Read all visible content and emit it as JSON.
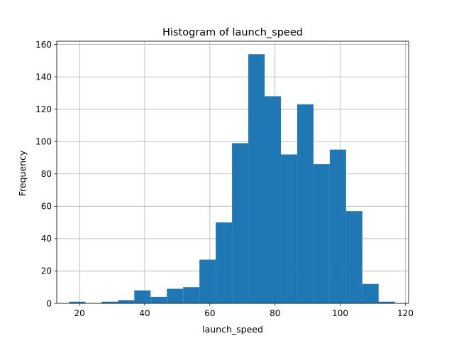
{
  "chart_data": {
    "type": "bar",
    "title": "Histogram of launch_speed",
    "xlabel": "launch_speed",
    "ylabel": "Frequency",
    "xlim": [
      13.0,
      121.0
    ],
    "ylim": [
      0,
      162
    ],
    "xticks": [
      20,
      40,
      60,
      80,
      100,
      120
    ],
    "yticks": [
      0,
      20,
      40,
      60,
      80,
      100,
      120,
      140,
      160
    ],
    "grid": true,
    "bar_color": "#1f77b4",
    "bins": [
      {
        "x0": 16.8,
        "x1": 21.8,
        "count": 1
      },
      {
        "x0": 21.8,
        "x1": 26.8,
        "count": 0
      },
      {
        "x0": 26.8,
        "x1": 31.8,
        "count": 1
      },
      {
        "x0": 31.8,
        "x1": 36.8,
        "count": 2
      },
      {
        "x0": 36.8,
        "x1": 41.8,
        "count": 8
      },
      {
        "x0": 41.8,
        "x1": 46.8,
        "count": 4
      },
      {
        "x0": 46.8,
        "x1": 51.8,
        "count": 9
      },
      {
        "x0": 51.8,
        "x1": 56.8,
        "count": 10
      },
      {
        "x0": 56.8,
        "x1": 61.8,
        "count": 27
      },
      {
        "x0": 61.8,
        "x1": 66.8,
        "count": 50
      },
      {
        "x0": 66.8,
        "x1": 71.8,
        "count": 99
      },
      {
        "x0": 71.8,
        "x1": 76.8,
        "count": 154
      },
      {
        "x0": 76.8,
        "x1": 81.8,
        "count": 128
      },
      {
        "x0": 81.8,
        "x1": 86.8,
        "count": 92
      },
      {
        "x0": 86.8,
        "x1": 91.8,
        "count": 123
      },
      {
        "x0": 91.8,
        "x1": 96.8,
        "count": 86
      },
      {
        "x0": 96.8,
        "x1": 101.8,
        "count": 95
      },
      {
        "x0": 101.8,
        "x1": 106.8,
        "count": 57
      },
      {
        "x0": 106.8,
        "x1": 111.8,
        "count": 12
      },
      {
        "x0": 111.8,
        "x1": 116.8,
        "count": 1
      }
    ]
  }
}
